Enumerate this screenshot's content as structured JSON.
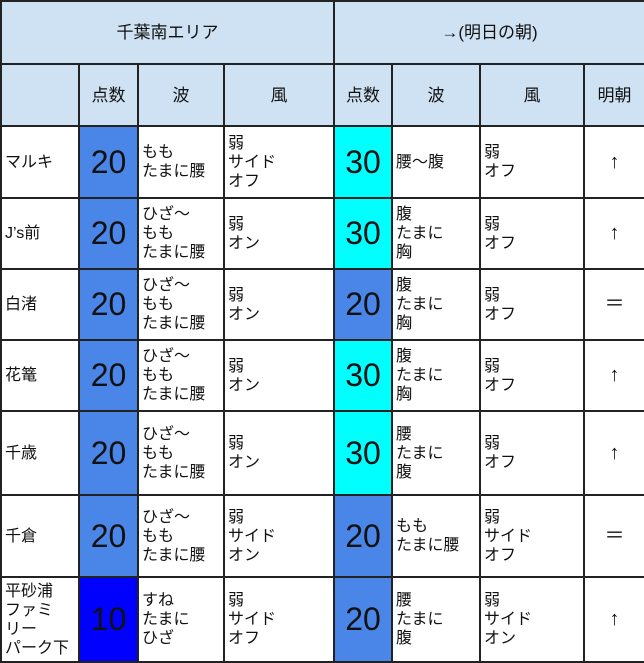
{
  "headers": {
    "area_title": "千葉南エリア",
    "forecast_title": "→(明日の朝)",
    "col_score": "点数",
    "col_wave": "波",
    "col_wind": "風",
    "col_score2": "点数",
    "col_wave2": "波",
    "col_wind2": "風",
    "col_trend": "明朝"
  },
  "colors": {
    "header_bg": "#cfe2f3",
    "score_10": "#0000ff",
    "score_20": "#4a86e8",
    "score_30": "#00ffff"
  },
  "rows": [
    {
      "spot": "マルキ",
      "score": "20",
      "wave": "もも\nたまに腰",
      "wind": "弱\nサイド\nオフ",
      "score2": "30",
      "wave2": "腰〜腹",
      "wind2": "弱\nオフ",
      "trend": "↑"
    },
    {
      "spot": "J’s前",
      "score": "20",
      "wave": "ひざ〜\nもも\nたまに腰",
      "wind": "弱\nオン",
      "score2": "30",
      "wave2": "腹\nたまに\n胸",
      "wind2": "弱\nオフ",
      "trend": "↑"
    },
    {
      "spot": "白渚",
      "score": "20",
      "wave": "ひざ〜\nもも\nたまに腰",
      "wind": "弱\nオン",
      "score2": "20",
      "wave2": "腹\nたまに\n胸",
      "wind2": "弱\nオフ",
      "trend": "＝"
    },
    {
      "spot": "花篭",
      "score": "20",
      "wave": "ひざ〜\nもも\nたまに腰",
      "wind": "弱\nオン",
      "score2": "30",
      "wave2": "腹\nたまに\n胸",
      "wind2": "弱\nオフ",
      "trend": "↑"
    },
    {
      "spot": "千歳",
      "score": "20",
      "wave": "ひざ〜\nもも\nたまに腰",
      "wind": "弱\nオン",
      "score2": "30",
      "wave2": "腰\nたまに\n腹",
      "wind2": "弱\nオフ",
      "trend": "↑"
    },
    {
      "spot": "千倉",
      "score": "20",
      "wave": "ひざ〜\nもも\nたまに腰",
      "wind": "弱\nサイド\nオン",
      "score2": "20",
      "wave2": "もも\nたまに腰",
      "wind2": "弱\nサイド\nオフ",
      "trend": "＝"
    },
    {
      "spot": "平砂浦\nファミ\nリー\nパーク下",
      "score": "10",
      "wave": "すね\nたまに\nひざ",
      "wind": "弱\nサイド\nオフ",
      "score2": "20",
      "wave2": "腰\nたまに\n腹",
      "wind2": "弱\nサイド\nオン",
      "trend": "↑"
    }
  ]
}
